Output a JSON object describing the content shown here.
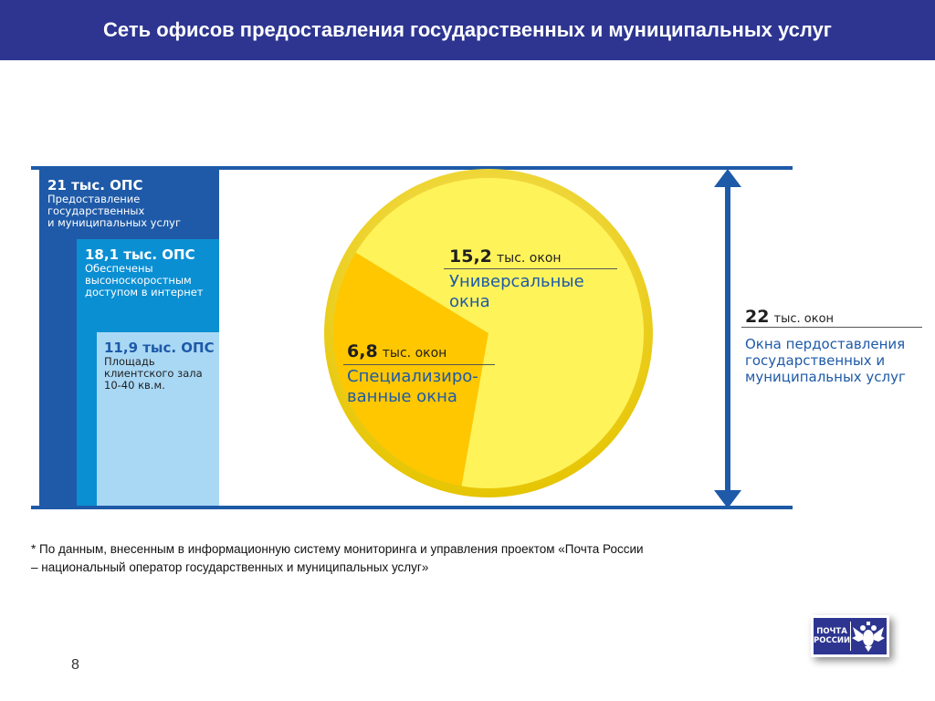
{
  "header": {
    "title": "Сеть офисов предоставления государственных и муниципальных услуг"
  },
  "chart_data": {
    "type": "bar",
    "bars": [
      {
        "value_label": "21 тыс. ОПС",
        "desc": [
          "Предоставление",
          "государственных",
          "и муниципальных услуг"
        ],
        "value": 21,
        "color": "#1e5aa8"
      },
      {
        "value_label": "18,1 тыс. ОПС",
        "desc": [
          "Обеспечены",
          "высоноскоростным",
          "доступом в интернет"
        ],
        "value": 18.1,
        "color": "#0b8fd3"
      },
      {
        "value_label": "11,9 тыс. ОПС",
        "desc": [
          "Площадь",
          "клиентского зала",
          "10-40 кв.м."
        ],
        "value": 11.9,
        "color": "#a9d8f5"
      }
    ],
    "pie": {
      "type": "pie",
      "slices": [
        {
          "value": 15.2,
          "num": "15,2",
          "unit": "тыс. окон",
          "desc": [
            "Универсальные",
            "окна"
          ],
          "color": "#fff35a"
        },
        {
          "value": 6.8,
          "num": "6,8",
          "unit": "тыс. окон",
          "desc": [
            "Специализиро-",
            "ванные окна"
          ],
          "color": "#ffc700"
        }
      ]
    },
    "total": {
      "num": "22",
      "unit": "тыс. окон",
      "desc": [
        "Окна пердоставления",
        "государственных и",
        "муниципальных услуг"
      ]
    }
  },
  "footnote": {
    "line1": "* По данным, внесенным в информационную систему мониторинга и управления проектом «Почта России",
    "line2": "– национальный оператор государственных и муниципальных услуг»"
  },
  "page_number": "8",
  "logo": {
    "line1": "ПОЧТА",
    "line2": "РОССИИ",
    "emblem": "double-headed-eagle-icon"
  }
}
